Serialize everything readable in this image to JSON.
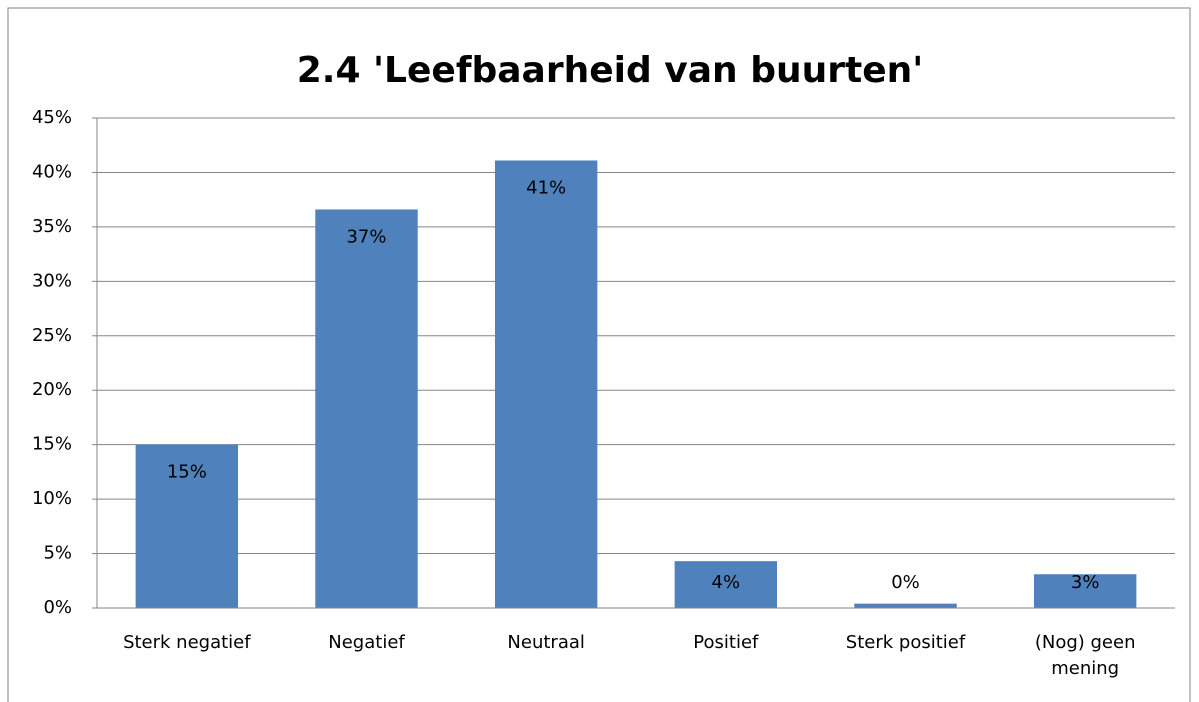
{
  "chart_data": {
    "type": "bar",
    "title": "2.4 'Leefbaarheid van buurten'",
    "categories": [
      "Sterk negatief",
      "Negatief",
      "Neutraal",
      "Positief",
      "Sterk positief",
      "(Nog) geen mening"
    ],
    "values": [
      15,
      36.6,
      41.1,
      4.3,
      0.4,
      3.1
    ],
    "value_labels": [
      "15%",
      "37%",
      "41%",
      "4%",
      "0%",
      "3%"
    ],
    "color": "#4f81bd",
    "ylim": [
      0,
      45
    ],
    "yticks": [
      {
        "value": 0,
        "label": "0%"
      },
      {
        "value": 5,
        "label": "5%"
      },
      {
        "value": 10,
        "label": "10%"
      },
      {
        "value": 15,
        "label": "15%"
      },
      {
        "value": 20,
        "label": "20%"
      },
      {
        "value": 25,
        "label": "25%"
      },
      {
        "value": 30,
        "label": "30%"
      },
      {
        "value": 35,
        "label": "35%"
      },
      {
        "value": 40,
        "label": "40%"
      },
      {
        "value": 45,
        "label": "45%"
      }
    ],
    "grid": true
  }
}
